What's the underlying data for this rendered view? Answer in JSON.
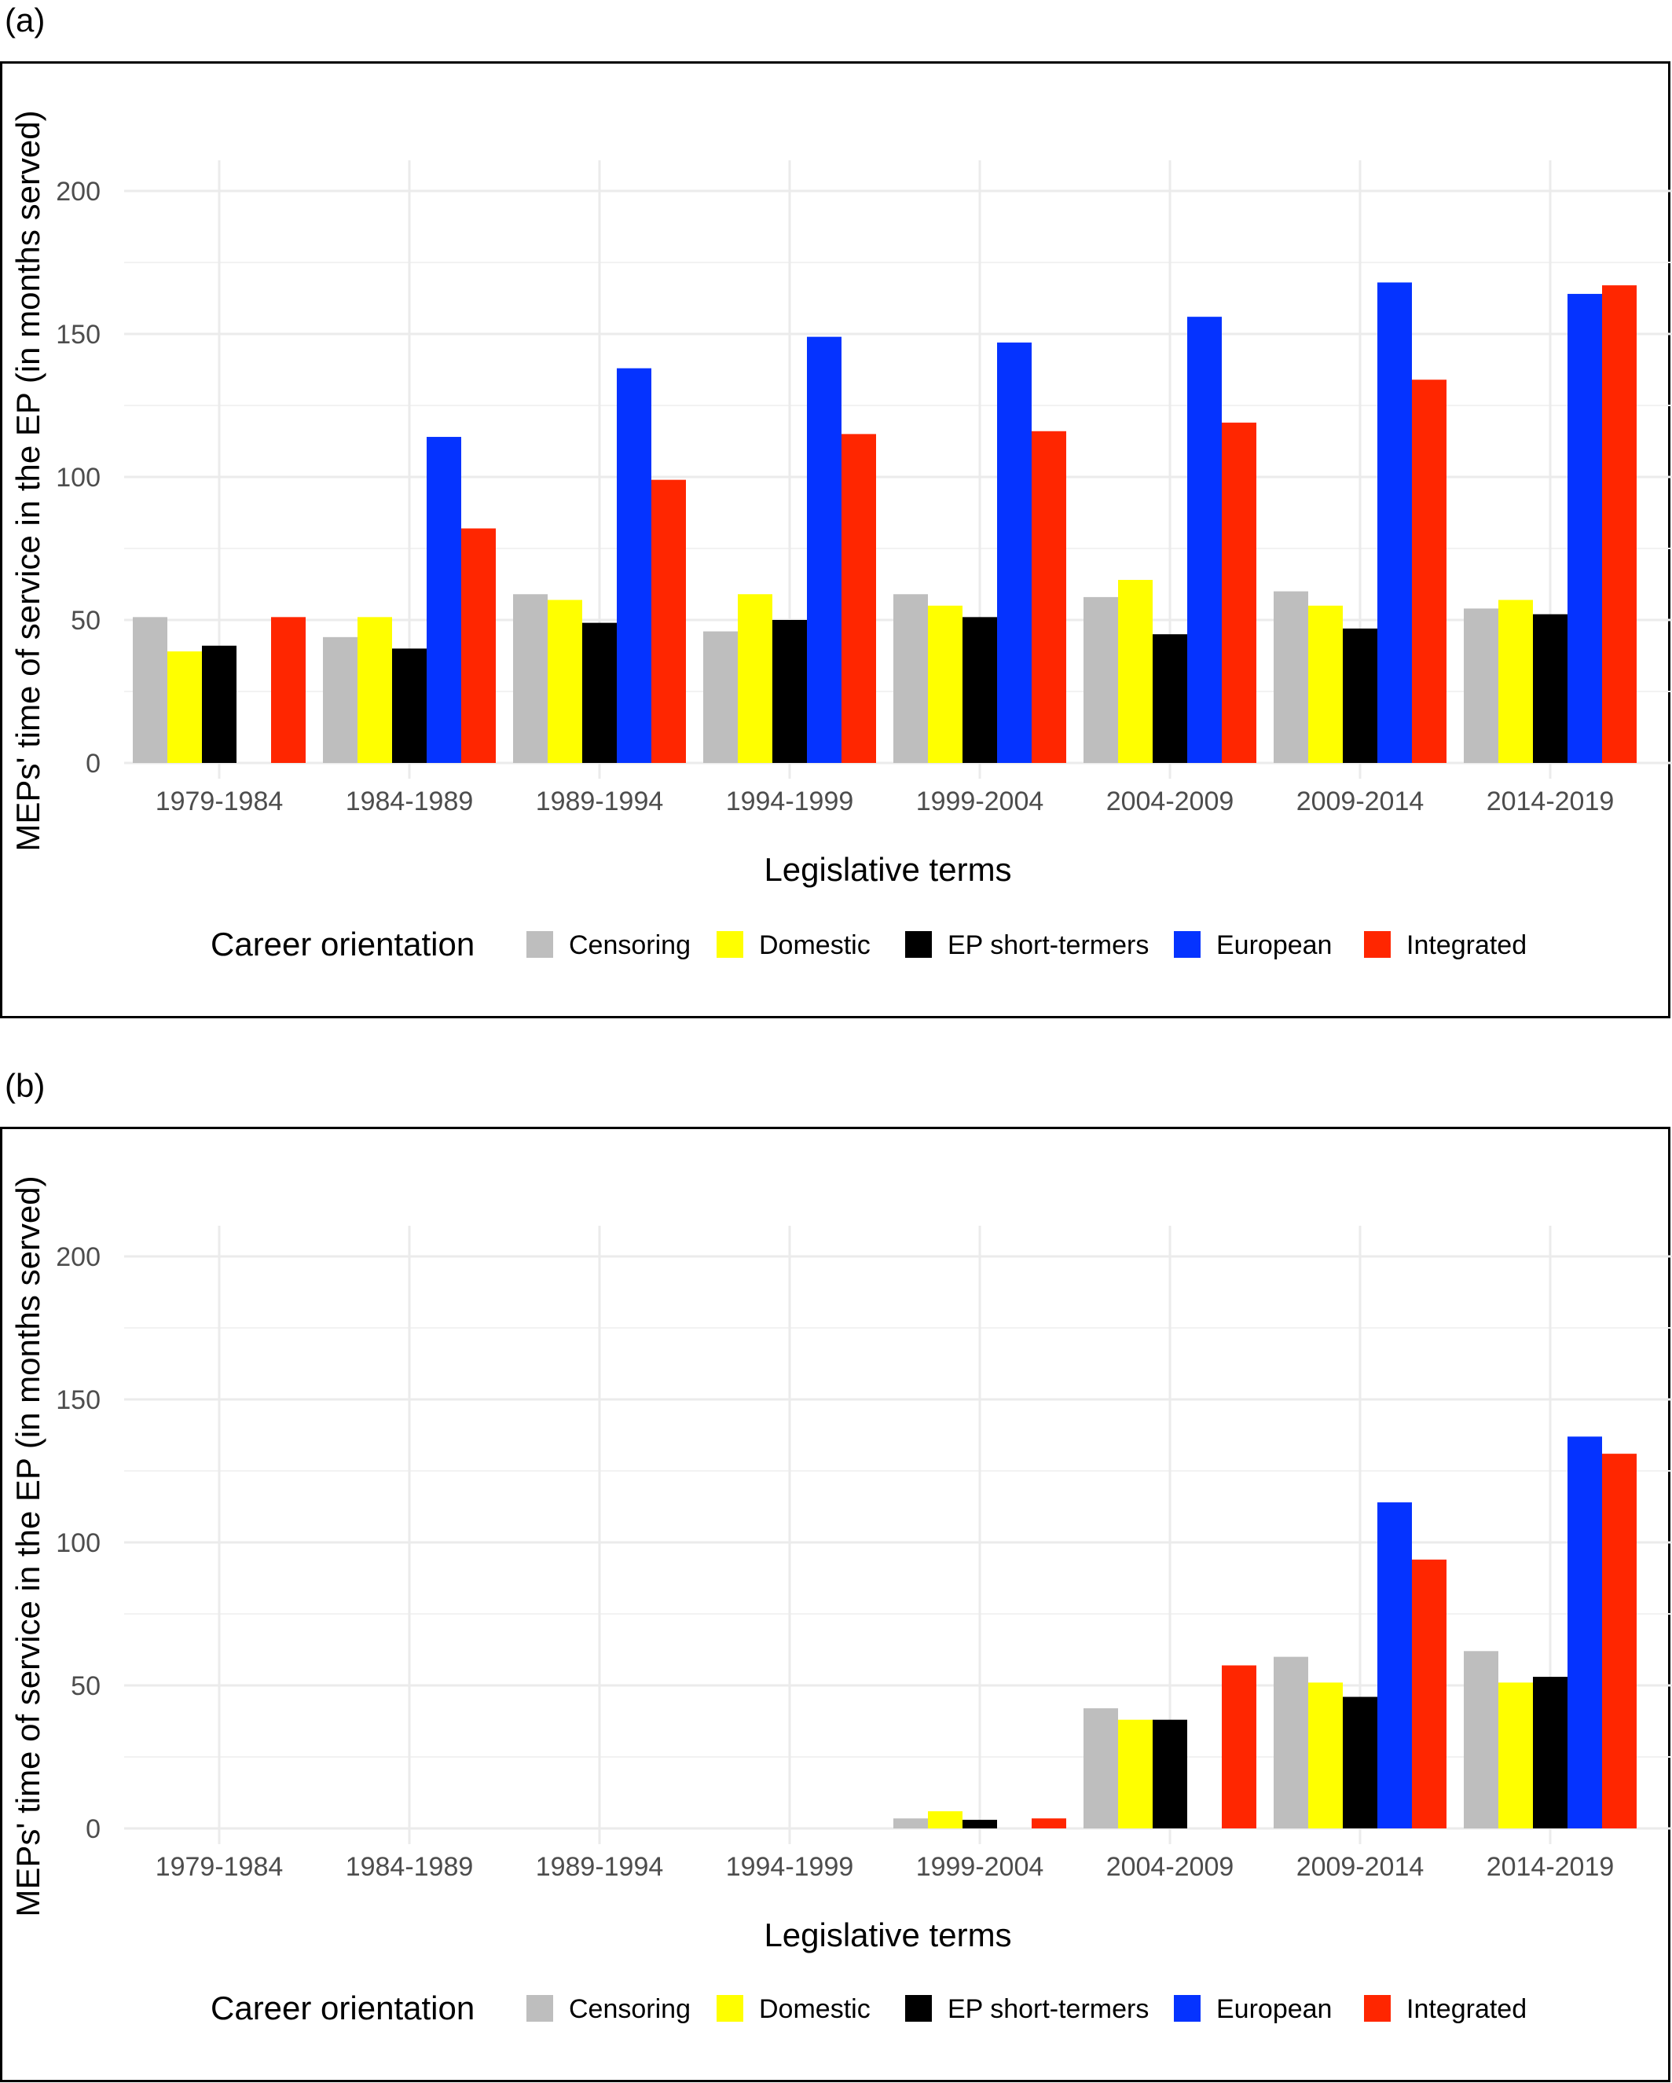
{
  "panels": [
    {
      "label": "(a)"
    },
    {
      "label": "(b)"
    }
  ],
  "chart_data": [
    {
      "type": "bar",
      "title": "",
      "xlabel": "Legislative terms",
      "ylabel": "MEPs' time of service in the EP (in months served)",
      "ylim": [
        0,
        210
      ],
      "yticks": [
        0,
        50,
        100,
        150,
        200
      ],
      "grid": true,
      "legend_title": "Career orientation",
      "legend_position": "bottom",
      "categories": [
        "1979-1984",
        "1984-1989",
        "1989-1994",
        "1994-1999",
        "1999-2004",
        "2004-2009",
        "2009-2014",
        "2014-2019"
      ],
      "series": [
        {
          "name": "Censoring",
          "color": "#BEBEBE",
          "values": [
            51,
            44,
            59,
            46,
            59,
            58,
            60,
            54
          ]
        },
        {
          "name": "Domestic",
          "color": "#FFFF00",
          "values": [
            39,
            51,
            57,
            59,
            55,
            64,
            55,
            57
          ]
        },
        {
          "name": "EP short-termers",
          "color": "#000000",
          "values": [
            41,
            40,
            49,
            50,
            51,
            45,
            47,
            52
          ]
        },
        {
          "name": "European",
          "color": "#0533FF",
          "values": [
            null,
            114,
            138,
            149,
            147,
            156,
            168,
            164
          ]
        },
        {
          "name": "Integrated",
          "color": "#FF2600",
          "values": [
            51,
            82,
            99,
            115,
            116,
            119,
            134,
            167
          ]
        }
      ]
    },
    {
      "type": "bar",
      "title": "",
      "xlabel": "Legislative terms",
      "ylabel": "MEPs' time of service in the EP (in months served)",
      "ylim": [
        0,
        210
      ],
      "yticks": [
        0,
        50,
        100,
        150,
        200
      ],
      "grid": true,
      "legend_title": "Career orientation",
      "legend_position": "bottom",
      "categories": [
        "1979-1984",
        "1984-1989",
        "1989-1994",
        "1994-1999",
        "1999-2004",
        "2004-2009",
        "2009-2014",
        "2014-2019"
      ],
      "series": [
        {
          "name": "Censoring",
          "color": "#BEBEBE",
          "values": [
            null,
            null,
            null,
            null,
            3.5,
            42,
            60,
            62
          ]
        },
        {
          "name": "Domestic",
          "color": "#FFFF00",
          "values": [
            null,
            null,
            null,
            null,
            6,
            38,
            51,
            51
          ]
        },
        {
          "name": "EP short-termers",
          "color": "#000000",
          "values": [
            null,
            null,
            null,
            null,
            3,
            38,
            46,
            53
          ]
        },
        {
          "name": "European",
          "color": "#0533FF",
          "values": [
            null,
            null,
            null,
            null,
            null,
            null,
            114,
            137
          ]
        },
        {
          "name": "Integrated",
          "color": "#FF2600",
          "values": [
            null,
            null,
            null,
            null,
            3.5,
            57,
            94,
            131
          ]
        }
      ]
    }
  ]
}
